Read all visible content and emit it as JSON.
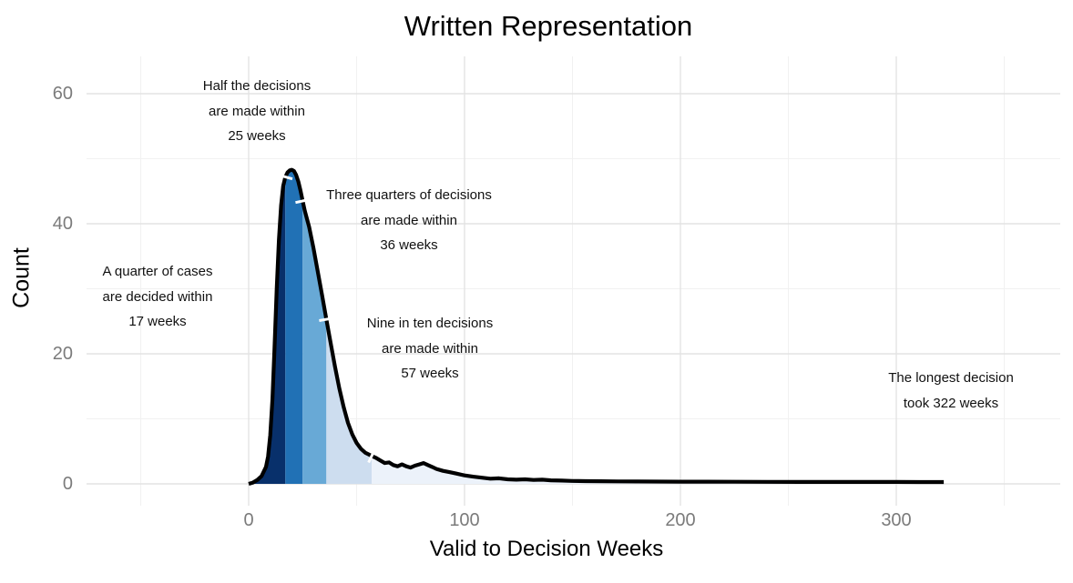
{
  "chart_data": {
    "type": "area",
    "title": "Written Representation",
    "xlabel": "Valid to Decision Weeks",
    "ylabel": "Count",
    "x_ticks": [
      0,
      100,
      200,
      300
    ],
    "y_ticks": [
      0,
      20,
      40,
      60
    ],
    "x_minor_gridlines": [
      -50,
      50,
      150,
      250,
      350
    ],
    "y_minor_gridlines": [
      10,
      30,
      50
    ],
    "xlim": [
      -52,
      376
    ],
    "ylim": [
      0,
      66
    ],
    "grid": {
      "major_color": "#e3e3e3",
      "minor_color": "#f1f1f1",
      "background": "#ffffff"
    },
    "tick_label_color": "#7b7b7b",
    "curve_color": "#000000",
    "quantile_marker_color": "#ffffff",
    "quantiles": [
      {
        "share": "25%",
        "weeks": 17
      },
      {
        "share": "50%",
        "weeks": 25
      },
      {
        "share": "75%",
        "weeks": 36
      },
      {
        "share": "90%",
        "weeks": 57
      },
      {
        "share": "max",
        "weeks": 322
      }
    ],
    "bands": [
      {
        "from": 0,
        "to": 17,
        "color": "#08306b"
      },
      {
        "from": 17,
        "to": 25,
        "color": "#2171b5"
      },
      {
        "from": 25,
        "to": 36,
        "color": "#68a9d6"
      },
      {
        "from": 36,
        "to": 57,
        "color": "#cdddef"
      },
      {
        "from": 57,
        "to": 322,
        "color": "#ecf2fa"
      }
    ],
    "curve": [
      [
        0,
        0
      ],
      [
        2,
        0.2
      ],
      [
        4,
        0.6
      ],
      [
        6,
        1.2
      ],
      [
        8,
        2.6
      ],
      [
        9,
        4.2
      ],
      [
        10,
        7.5
      ],
      [
        11,
        13
      ],
      [
        12,
        21
      ],
      [
        13,
        30
      ],
      [
        14,
        37.5
      ],
      [
        15,
        42.8
      ],
      [
        16,
        45.8
      ],
      [
        17,
        47.2
      ],
      [
        18,
        47.9
      ],
      [
        19,
        48.2
      ],
      [
        20,
        48.3
      ],
      [
        21,
        48.1
      ],
      [
        22,
        47.5
      ],
      [
        23,
        46.5
      ],
      [
        24,
        45.1
      ],
      [
        25,
        43.5
      ],
      [
        26,
        42
      ],
      [
        28,
        39.5
      ],
      [
        30,
        36.3
      ],
      [
        32,
        32.7
      ],
      [
        34,
        29
      ],
      [
        36,
        25.3
      ],
      [
        38,
        21.6
      ],
      [
        40,
        18
      ],
      [
        42,
        14.7
      ],
      [
        44,
        11.8
      ],
      [
        46,
        9.4
      ],
      [
        48,
        7.6
      ],
      [
        50,
        6.3
      ],
      [
        52,
        5.4
      ],
      [
        54,
        4.8
      ],
      [
        57,
        4.3
      ],
      [
        59,
        4.0
      ],
      [
        61,
        3.6
      ],
      [
        63,
        3.2
      ],
      [
        65,
        3.3
      ],
      [
        67,
        2.9
      ],
      [
        69,
        2.7
      ],
      [
        71,
        3.0
      ],
      [
        73,
        2.7
      ],
      [
        75,
        2.5
      ],
      [
        77,
        2.8
      ],
      [
        79,
        3.0
      ],
      [
        81,
        3.2
      ],
      [
        83,
        2.9
      ],
      [
        85,
        2.6
      ],
      [
        87,
        2.3
      ],
      [
        90,
        2.0
      ],
      [
        93,
        1.8
      ],
      [
        96,
        1.6
      ],
      [
        100,
        1.3
      ],
      [
        104,
        1.1
      ],
      [
        108,
        0.95
      ],
      [
        112,
        0.8
      ],
      [
        116,
        0.85
      ],
      [
        120,
        0.7
      ],
      [
        124,
        0.65
      ],
      [
        128,
        0.7
      ],
      [
        132,
        0.6
      ],
      [
        136,
        0.65
      ],
      [
        140,
        0.55
      ],
      [
        145,
        0.5
      ],
      [
        150,
        0.45
      ],
      [
        156,
        0.42
      ],
      [
        163,
        0.4
      ],
      [
        171,
        0.38
      ],
      [
        180,
        0.36
      ],
      [
        190,
        0.35
      ],
      [
        200,
        0.34
      ],
      [
        212,
        0.33
      ],
      [
        225,
        0.32
      ],
      [
        240,
        0.31
      ],
      [
        255,
        0.3
      ],
      [
        270,
        0.3
      ],
      [
        285,
        0.29
      ],
      [
        300,
        0.29
      ],
      [
        311,
        0.28
      ],
      [
        322,
        0.28
      ]
    ],
    "annotations": [
      {
        "id": "quarter",
        "lines": [
          "A quarter of cases",
          "are decided within",
          "17 weeks"
        ]
      },
      {
        "id": "half",
        "lines": [
          "Half the decisions",
          "are made within",
          "25 weeks"
        ]
      },
      {
        "id": "three-quarters",
        "lines": [
          "Three quarters of decisions",
          "are made within",
          "36 weeks"
        ]
      },
      {
        "id": "nine-in-ten",
        "lines": [
          "Nine in ten decisions",
          "are made within",
          "57 weeks"
        ]
      },
      {
        "id": "longest",
        "lines": [
          "The longest decision",
          "took 322 weeks"
        ]
      }
    ]
  }
}
